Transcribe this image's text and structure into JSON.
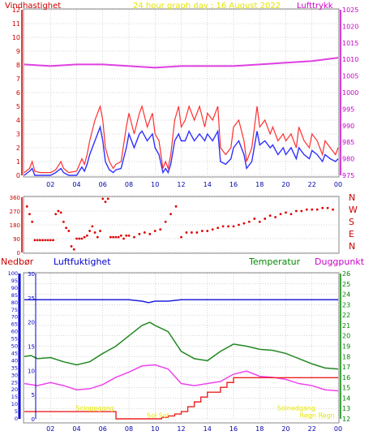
{
  "header": {
    "title": "24 hour graph day : 16 August 2022",
    "left_label": "Vindhastighet",
    "right_label": "Lufttrykk"
  },
  "colors": {
    "wind_gust": "#ff3030",
    "wind_avg": "#3030ff",
    "pressure": "#e040e0",
    "direction": "#dd0000",
    "humidity": "#2020dd",
    "temperature": "#228822",
    "dewpoint": "#ee44ee",
    "rain": "#ee2222",
    "sun_text": "#e6e600",
    "axis_red": "#cc0000",
    "axis_magenta": "#cc00cc",
    "axis_blue": "#0000cc",
    "axis_green": "#008800",
    "grid": "#aaaaaa"
  },
  "chart_data": [
    {
      "type": "line",
      "title": "24 hour graph day : 16 August 2022",
      "xlabel": "",
      "x_ticks": [
        "02",
        "04",
        "06",
        "08",
        "10",
        "12",
        "14",
        "16",
        "18",
        "20",
        "22",
        "00"
      ],
      "xlim": [
        0,
        24
      ],
      "left_axis": {
        "label": "Vindhastighet",
        "ylim": [
          0,
          12
        ],
        "ticks": [
          "0",
          "1",
          "2",
          "3",
          "4",
          "5",
          "6",
          "7",
          "8",
          "9",
          "10",
          "11",
          "12"
        ]
      },
      "right_axis": {
        "label": "Lufttrykk",
        "ylim": [
          975,
          1025
        ],
        "ticks": [
          "975",
          "980",
          "985",
          "990",
          "995",
          "1000",
          "1005",
          "1010",
          "1015",
          "1020",
          "1025"
        ]
      },
      "series": [
        {
          "name": "Vindhastighet",
          "axis": "left",
          "x": [
            0,
            0.4,
            0.6,
            0.8,
            1.2,
            2.0,
            2.4,
            2.8,
            3.0,
            3.4,
            4.0,
            4.4,
            4.6,
            4.8,
            5.0,
            5.4,
            5.6,
            5.8,
            6.0,
            6.2,
            6.5,
            6.8,
            7.0,
            7.4,
            7.8,
            8.0,
            8.4,
            8.8,
            9.0,
            9.4,
            9.8,
            10.0,
            10.3,
            10.6,
            10.8,
            11.0,
            11.2,
            11.5,
            11.8,
            12.0,
            12.3,
            12.6,
            13.0,
            13.4,
            13.8,
            14.0,
            14.4,
            14.8,
            15.0,
            15.4,
            15.8,
            16.0,
            16.4,
            16.8,
            17.0,
            17.4,
            17.8,
            18.0,
            18.4,
            18.8,
            19.0,
            19.4,
            19.8,
            20.0,
            20.4,
            20.8,
            21.0,
            21.4,
            21.8,
            22.0,
            22.4,
            22.8,
            23.0,
            23.4,
            23.8,
            24.0
          ],
          "values": [
            0.2,
            0.5,
            1.0,
            0.3,
            0.2,
            0.2,
            0.4,
            1.0,
            0.5,
            0.2,
            0.3,
            1.2,
            0.8,
            1.5,
            2.5,
            4.0,
            4.5,
            5.0,
            4.0,
            2.0,
            1.0,
            0.5,
            0.8,
            1.0,
            3.5,
            4.5,
            3.0,
            4.5,
            5.0,
            3.5,
            4.5,
            3.0,
            2.5,
            0.5,
            1.0,
            0.5,
            1.5,
            4.0,
            5.0,
            3.5,
            4.0,
            5.0,
            4.0,
            5.0,
            3.5,
            4.5,
            4.0,
            5.0,
            2.0,
            1.5,
            2.0,
            3.5,
            4.0,
            2.5,
            1.0,
            2.0,
            5.0,
            3.5,
            4.0,
            3.0,
            3.5,
            2.5,
            3.0,
            2.5,
            3.0,
            2.0,
            3.5,
            2.5,
            2.0,
            3.0,
            2.5,
            1.5,
            2.5,
            2.0,
            1.5,
            2.0
          ]
        },
        {
          "name": "",
          "axis": "left",
          "x": [
            0,
            0.4,
            0.6,
            0.8,
            1.2,
            2.0,
            2.4,
            2.8,
            3.0,
            3.4,
            4.0,
            4.4,
            4.6,
            4.8,
            5.0,
            5.4,
            5.6,
            5.8,
            6.0,
            6.2,
            6.5,
            6.8,
            7.0,
            7.4,
            7.8,
            8.0,
            8.4,
            8.8,
            9.0,
            9.4,
            9.8,
            10.0,
            10.3,
            10.6,
            10.8,
            11.0,
            11.2,
            11.5,
            11.8,
            12.0,
            12.3,
            12.6,
            13.0,
            13.4,
            13.8,
            14.0,
            14.4,
            14.8,
            15.0,
            15.4,
            15.8,
            16.0,
            16.4,
            16.8,
            17.0,
            17.4,
            17.8,
            18.0,
            18.4,
            18.8,
            19.0,
            19.4,
            19.8,
            20.0,
            20.4,
            20.8,
            21.0,
            21.4,
            21.8,
            22.0,
            22.4,
            22.8,
            23.0,
            23.4,
            23.8,
            24.0
          ],
          "values": [
            0,
            0.3,
            0.5,
            0,
            0,
            0,
            0.2,
            0.5,
            0.2,
            0,
            0,
            0.6,
            0.3,
            0.8,
            1.5,
            2.5,
            3.0,
            3.5,
            2.5,
            1.0,
            0.4,
            0.2,
            0.4,
            0.5,
            2.0,
            3.0,
            2.0,
            3.0,
            3.2,
            2.5,
            3.0,
            2.0,
            1.5,
            0.2,
            0.5,
            0.2,
            0.8,
            2.5,
            3.0,
            2.5,
            2.5,
            3.2,
            2.5,
            3.0,
            2.5,
            3.0,
            2.5,
            3.2,
            1.0,
            0.8,
            1.2,
            2.0,
            2.5,
            1.5,
            0.5,
            1.0,
            3.2,
            2.2,
            2.5,
            2.0,
            2.2,
            1.5,
            2.0,
            1.5,
            2.0,
            1.2,
            2.0,
            1.5,
            1.2,
            1.8,
            1.5,
            1.0,
            1.5,
            1.2,
            1.0,
            1.2
          ]
        },
        {
          "name": "Lufttrykk",
          "axis": "right",
          "x": [
            0,
            2,
            4,
            6,
            8,
            10,
            12,
            14,
            16,
            18,
            20,
            22,
            24
          ],
          "values": [
            1008.5,
            1008,
            1008.5,
            1008.5,
            1008,
            1007.5,
            1008,
            1008,
            1008,
            1008.5,
            1009,
            1009.5,
            1010.5
          ]
        }
      ]
    },
    {
      "type": "scatter",
      "title": "",
      "xlim": [
        0,
        24
      ],
      "ylim": [
        0,
        360
      ],
      "y_ticks": [
        "0",
        "90",
        "180",
        "270",
        "360"
      ],
      "direction_labels": [
        "N",
        "W",
        "S",
        "E",
        "N"
      ],
      "series": [
        {
          "name": "",
          "x": [
            0.2,
            0.4,
            0.6,
            0.8,
            1.0,
            1.2,
            1.4,
            1.6,
            1.8,
            2.0,
            2.2,
            2.4,
            2.6,
            2.8,
            3.0,
            3.2,
            3.4,
            3.6,
            3.8,
            4.0,
            4.2,
            4.4,
            4.6,
            4.8,
            5.0,
            5.2,
            5.4,
            5.6,
            5.8,
            6.0,
            6.2,
            6.4,
            6.6,
            6.8,
            7.0,
            7.2,
            7.4,
            7.6,
            7.8,
            8.0,
            8.4,
            8.8,
            9.2,
            9.6,
            10.0,
            10.4,
            10.8,
            11.2,
            11.6,
            12.0,
            12.4,
            12.8,
            13.2,
            13.6,
            14.0,
            14.4,
            14.8,
            15.2,
            15.6,
            16.0,
            16.4,
            16.8,
            17.2,
            17.6,
            18.0,
            18.4,
            18.8,
            19.2,
            19.6,
            20.0,
            20.4,
            20.8,
            21.2,
            21.6,
            22.0,
            22.4,
            22.8,
            23.2,
            23.6
          ],
          "values": [
            300,
            250,
            200,
            80,
            80,
            80,
            80,
            80,
            80,
            80,
            80,
            250,
            270,
            260,
            200,
            160,
            140,
            40,
            20,
            90,
            90,
            90,
            100,
            110,
            140,
            170,
            130,
            100,
            140,
            350,
            330,
            350,
            100,
            100,
            100,
            100,
            110,
            90,
            110,
            110,
            100,
            120,
            130,
            120,
            140,
            150,
            200,
            250,
            300,
            100,
            130,
            130,
            130,
            140,
            140,
            150,
            160,
            170,
            170,
            170,
            180,
            190,
            200,
            220,
            200,
            220,
            240,
            230,
            250,
            260,
            250,
            270,
            270,
            280,
            280,
            280,
            290,
            290,
            280
          ]
        }
      ]
    },
    {
      "type": "line",
      "title": "",
      "x_ticks": [
        "02",
        "04",
        "06",
        "08",
        "10",
        "12",
        "14",
        "16",
        "18",
        "20",
        "22",
        "00"
      ],
      "xlim": [
        0,
        24
      ],
      "left_labels": [
        "Nedbør",
        "Luftfuktighet"
      ],
      "right_labels": [
        "Temperatur",
        "Duggpunkt"
      ],
      "axis_rain": {
        "ylim": [
          0,
          30
        ],
        "ticks": [
          "0",
          "5",
          "10",
          "15",
          "20",
          "25",
          "30"
        ]
      },
      "axis_humidity": {
        "ylim": [
          0,
          100
        ],
        "ticks": [
          "0",
          "5",
          "10",
          "15",
          "20",
          "25",
          "30",
          "35",
          "40",
          "45",
          "50",
          "55",
          "60",
          "65",
          "70",
          "75",
          "80",
          "85",
          "90",
          "95",
          "100"
        ]
      },
      "axis_temperature": {
        "ylim": [
          12,
          26
        ],
        "ticks": [
          "12",
          "13",
          "14",
          "15",
          "16",
          "17",
          "18",
          "19",
          "20",
          "21",
          "22",
          "23",
          "24",
          "25",
          "26"
        ]
      },
      "annotations": [
        {
          "text": "Soloppgang",
          "x": 5.4,
          "y": 1.6
        },
        {
          "text": "Solnedgang",
          "x": 20.8,
          "y": 1.6
        },
        {
          "text": "Sol Sol",
          "x": 10.2,
          "y": 0.1
        },
        {
          "text": "Regn Regn",
          "x": 22.4,
          "y": 0.1
        }
      ],
      "series": [
        {
          "name": "Luftfuktighet",
          "axis": "humidity",
          "x": [
            0,
            2,
            4,
            6,
            8,
            9,
            9.5,
            10,
            11,
            12,
            14,
            16,
            18,
            20,
            22,
            24
          ],
          "values": [
            82,
            82,
            82,
            82,
            82,
            81,
            80,
            81,
            81,
            82,
            82,
            82,
            82,
            82,
            82,
            82
          ]
        },
        {
          "name": "Temperatur",
          "axis": "temperature",
          "x": [
            0,
            0.5,
            1,
            2,
            3,
            4,
            5,
            6,
            7,
            8,
            9,
            9.6,
            10,
            11,
            12,
            13,
            14,
            15,
            16,
            17,
            18,
            19,
            20,
            21,
            22,
            23,
            24
          ],
          "values": [
            18.0,
            18.1,
            17.8,
            17.9,
            17.5,
            17.2,
            17.5,
            18.3,
            19.0,
            20.0,
            21.0,
            21.3,
            21.0,
            20.4,
            18.5,
            17.8,
            17.6,
            18.5,
            19.2,
            19.0,
            18.7,
            18.6,
            18.3,
            17.8,
            17.3,
            16.9,
            16.8
          ]
        },
        {
          "name": "Duggpunkt",
          "axis": "temperature",
          "x": [
            0,
            1,
            2,
            3,
            4,
            5,
            6,
            7,
            8,
            9,
            10,
            11,
            12,
            13,
            14,
            15,
            16,
            17,
            18,
            19,
            20,
            21,
            22,
            23,
            24
          ],
          "values": [
            15.4,
            15.2,
            15.5,
            15.2,
            14.8,
            14.9,
            15.3,
            16.0,
            16.5,
            17.1,
            17.2,
            16.8,
            15.4,
            15.2,
            15.4,
            15.6,
            16.3,
            16.6,
            16.1,
            16.0,
            15.8,
            15.4,
            15.2,
            14.8,
            14.7
          ]
        },
        {
          "name": "Nedbør",
          "axis": "rain",
          "x": [
            0,
            7,
            7.01,
            10,
            10.5,
            11,
            11.5,
            12,
            12.5,
            13,
            13.5,
            14,
            14.5,
            15,
            15.5,
            16,
            16.5,
            24
          ],
          "values": [
            1.5,
            1.5,
            0,
            0,
            0.3,
            0.6,
            1.0,
            1.5,
            2.5,
            3.5,
            4.5,
            5.5,
            5.5,
            6.5,
            7.5,
            8.5,
            8.5,
            8.5
          ]
        }
      ]
    }
  ]
}
